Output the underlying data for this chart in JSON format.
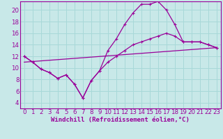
{
  "background_color": "#c8e8e8",
  "grid_color": "#a8d8d8",
  "line_color": "#990099",
  "xlabel": "Windchill (Refroidissement éolien,°C)",
  "xlim": [
    -0.5,
    23.5
  ],
  "ylim": [
    3,
    21.5
  ],
  "xticks": [
    0,
    1,
    2,
    3,
    4,
    5,
    6,
    7,
    8,
    9,
    10,
    11,
    12,
    13,
    14,
    15,
    16,
    17,
    18,
    19,
    20,
    21,
    22,
    23
  ],
  "yticks": [
    4,
    6,
    8,
    10,
    12,
    14,
    16,
    18,
    20
  ],
  "font_size_xlabel": 6.5,
  "font_size_ticks": 6.2,
  "line1_x": [
    0,
    1,
    2,
    3,
    4,
    5,
    6,
    7,
    8,
    9,
    10,
    11,
    12,
    13,
    14,
    15,
    16,
    17,
    18,
    19,
    20,
    21,
    22,
    23
  ],
  "line1_y": [
    12.0,
    11.0,
    9.8,
    9.2,
    8.2,
    8.8,
    7.2,
    4.8,
    7.8,
    9.5,
    13.0,
    15.0,
    17.5,
    19.5,
    21.0,
    21.0,
    21.5,
    20.0,
    17.5,
    14.5,
    14.5,
    14.5,
    14.0,
    13.5
  ],
  "line2_x": [
    0,
    1,
    2,
    3,
    4,
    5,
    6,
    7,
    8,
    9,
    10,
    11,
    12,
    13,
    14,
    15,
    16,
    17,
    18,
    19,
    20,
    21,
    22,
    23
  ],
  "line2_y": [
    12.0,
    11.0,
    9.8,
    9.2,
    8.2,
    8.8,
    7.2,
    4.8,
    7.8,
    9.5,
    11.0,
    12.0,
    13.0,
    14.0,
    14.5,
    15.0,
    15.5,
    16.0,
    15.5,
    14.5,
    14.5,
    14.5,
    14.0,
    13.5
  ],
  "line3_x": [
    0,
    23
  ],
  "line3_y": [
    11.0,
    13.5
  ]
}
